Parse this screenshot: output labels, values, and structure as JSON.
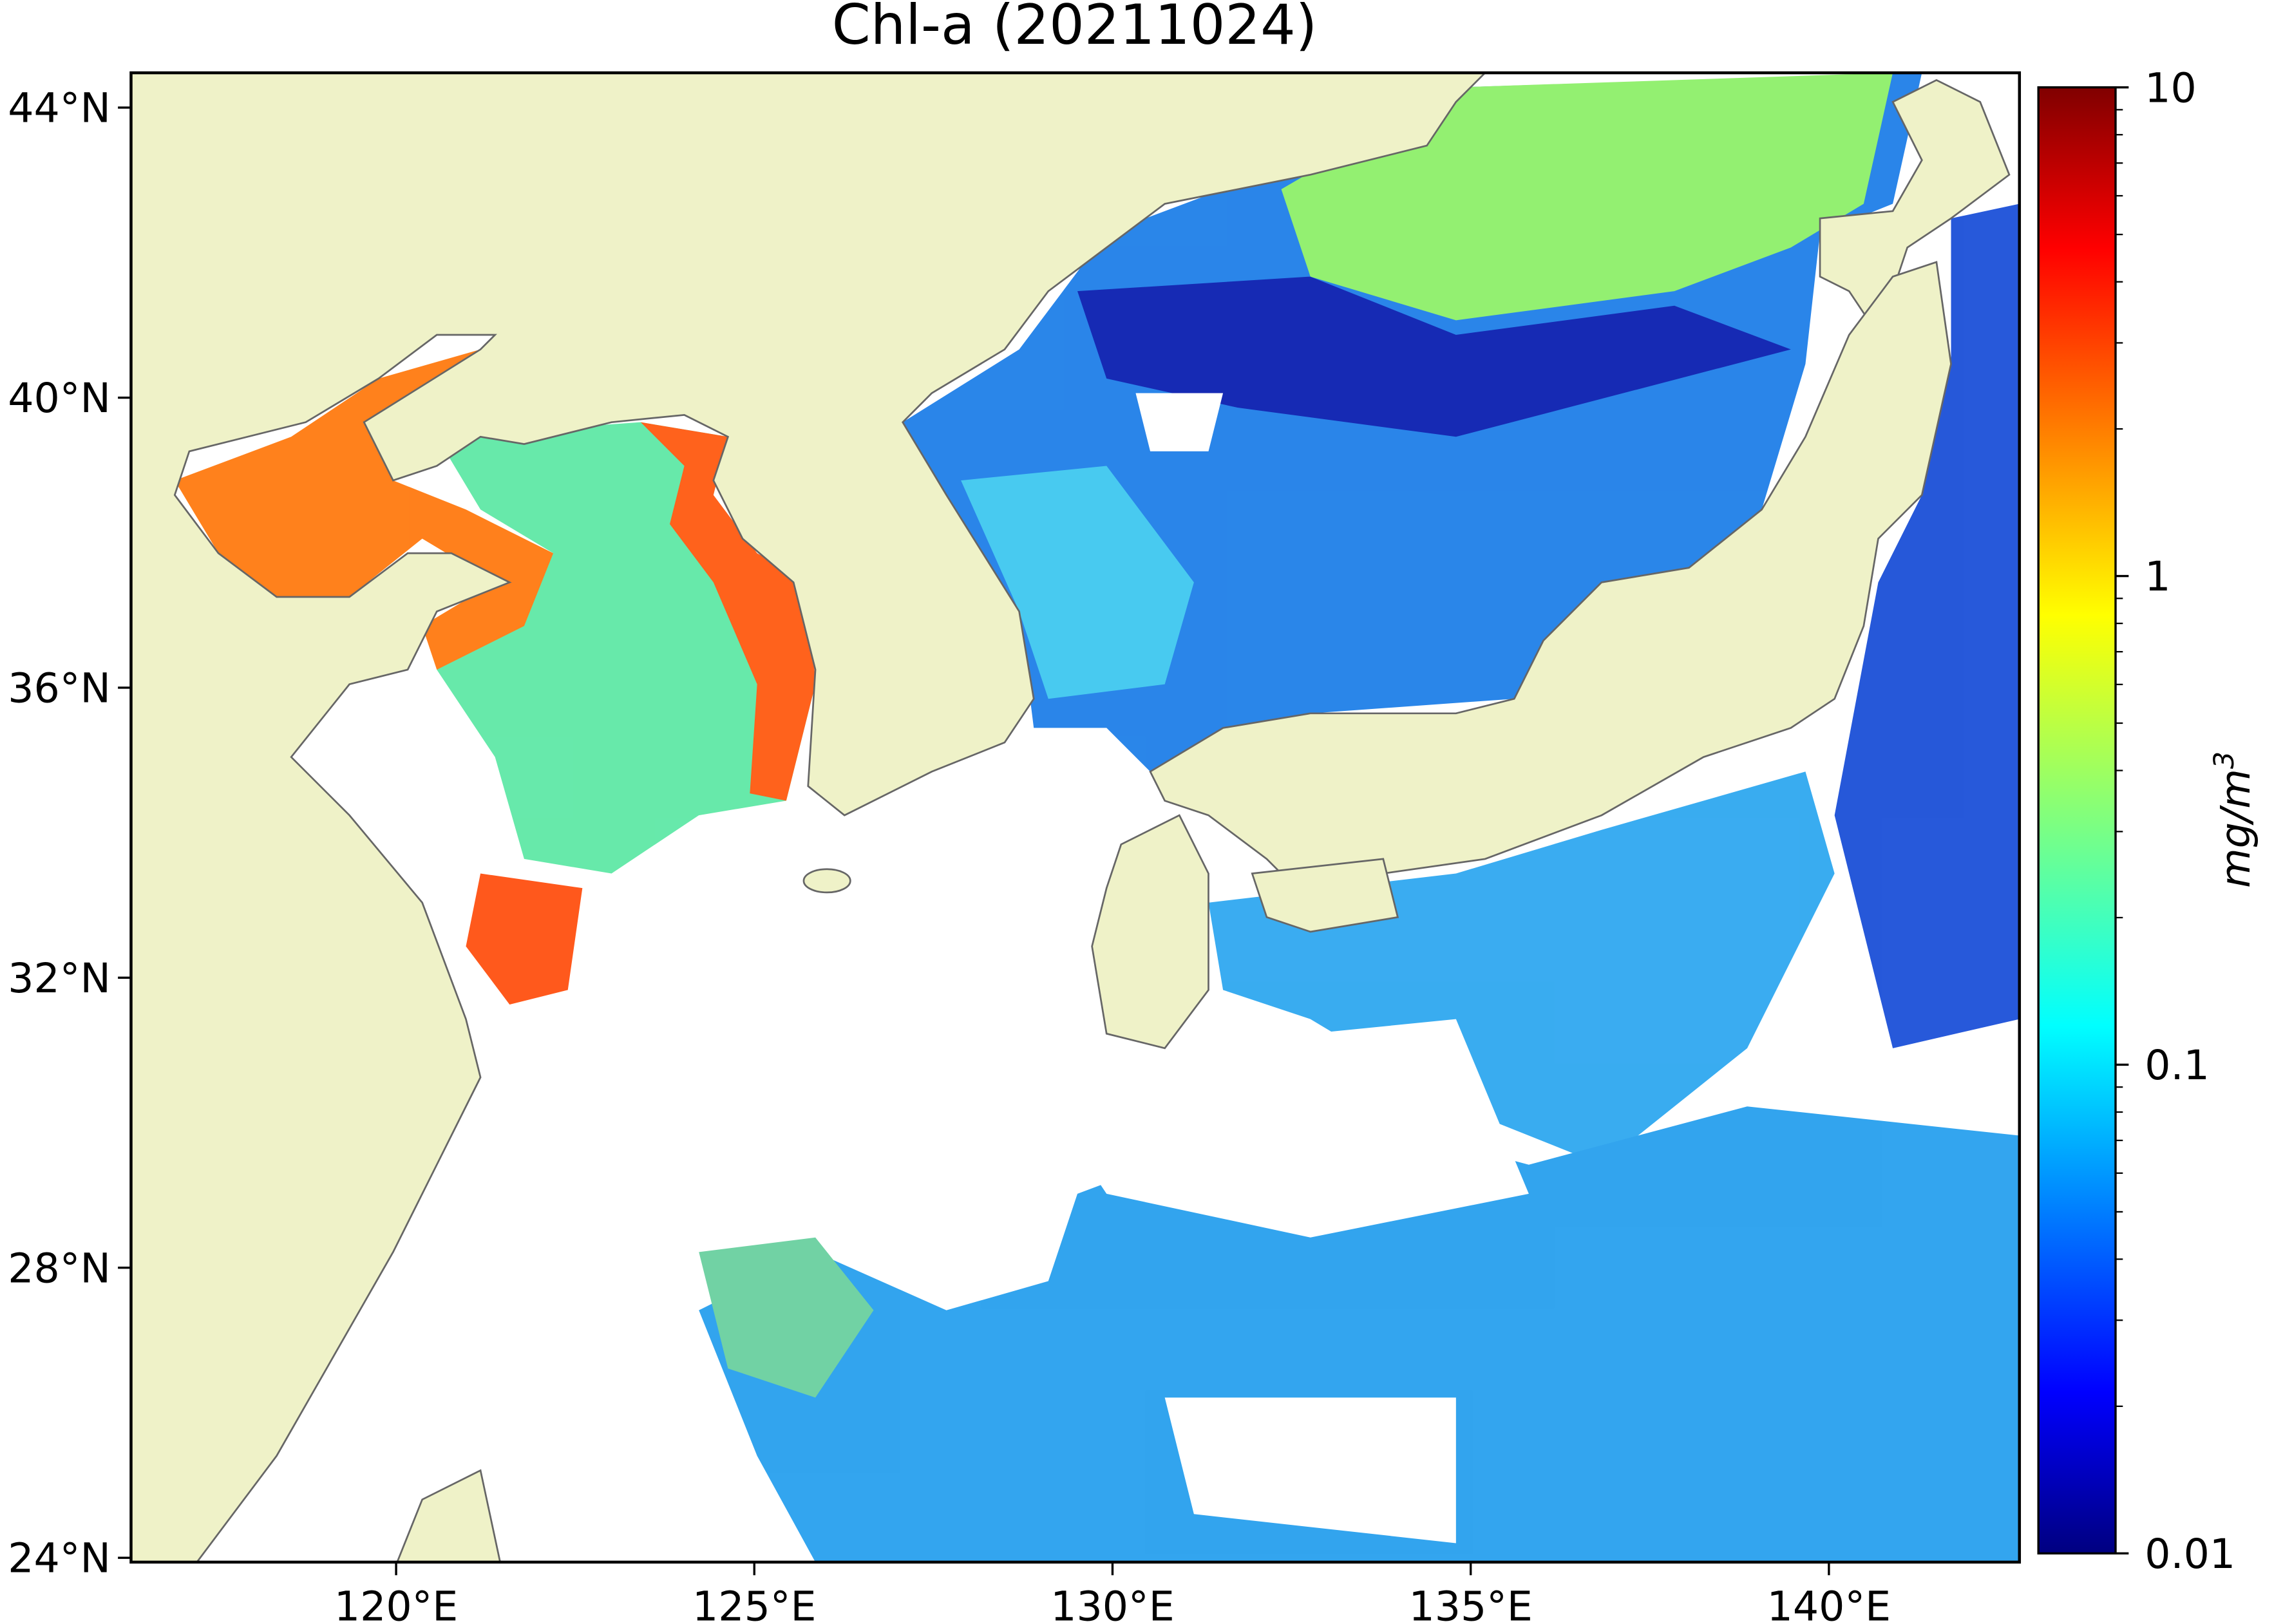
{
  "map": {
    "title": "Chl-a (20211024)",
    "lonlim": [
      116.3,
      142.66
    ],
    "latlim": [
      23.94,
      44.48
    ],
    "lon_ticks": [
      {
        "value": 120,
        "label": "120°E"
      },
      {
        "value": 125,
        "label": "125°E"
      },
      {
        "value": 130,
        "label": "130°E"
      },
      {
        "value": 135,
        "label": "135°E"
      },
      {
        "value": 140,
        "label": "140°E"
      }
    ],
    "lat_ticks": [
      {
        "value": 24,
        "label": "24°N"
      },
      {
        "value": 28,
        "label": "28°N"
      },
      {
        "value": 32,
        "label": "32°N"
      },
      {
        "value": 36,
        "label": "36°N"
      },
      {
        "value": 40,
        "label": "40°N"
      },
      {
        "value": 44,
        "label": "44°N"
      }
    ],
    "colorbar": {
      "label": "mg/m",
      "label_superscript": "3",
      "lim": [
        0.01,
        10
      ],
      "ticks": [
        0.01,
        0.1,
        1,
        10
      ],
      "log_scale": true,
      "colormap": "jet"
    }
  }
}
